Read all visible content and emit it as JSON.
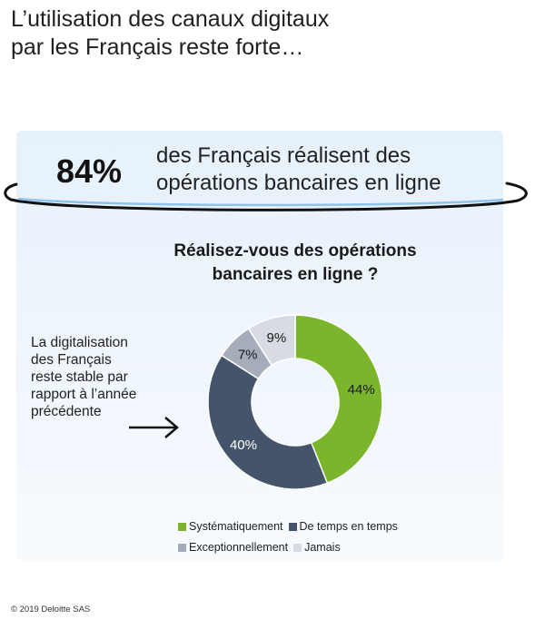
{
  "title": {
    "line1": "L’utilisation des canaux digitaux",
    "line2": "par les Français reste forte…"
  },
  "highlight": {
    "value": "84%",
    "text_line1": "des Français réalisent des",
    "text_line2": "opérations bancaires en ligne"
  },
  "side_note": {
    "lines": [
      "La digitalisation",
      "des Français",
      "reste stable par",
      "rapport à l’année",
      "précédente"
    ]
  },
  "footer": "© 2019 Deloitte SAS",
  "colors": {
    "green": "#7ab52c",
    "dark": "#44546a",
    "grey": "#a5adba",
    "light": "#d7dbe3"
  },
  "chart_data": {
    "type": "pie",
    "variant": "donut",
    "title_line1": "Réalisez-vous des opérations",
    "title_line2": "bancaires en ligne ?",
    "categories": [
      "Systématiquement",
      "De temps en temps",
      "Exceptionnellement",
      "Jamais"
    ],
    "values": [
      44,
      40,
      7,
      9
    ],
    "labels": [
      "44%",
      "40%",
      "7%",
      "9%"
    ],
    "colors": [
      "#7ab52c",
      "#44546a",
      "#a5adba",
      "#d7dbe3"
    ],
    "legend_position": "bottom"
  }
}
